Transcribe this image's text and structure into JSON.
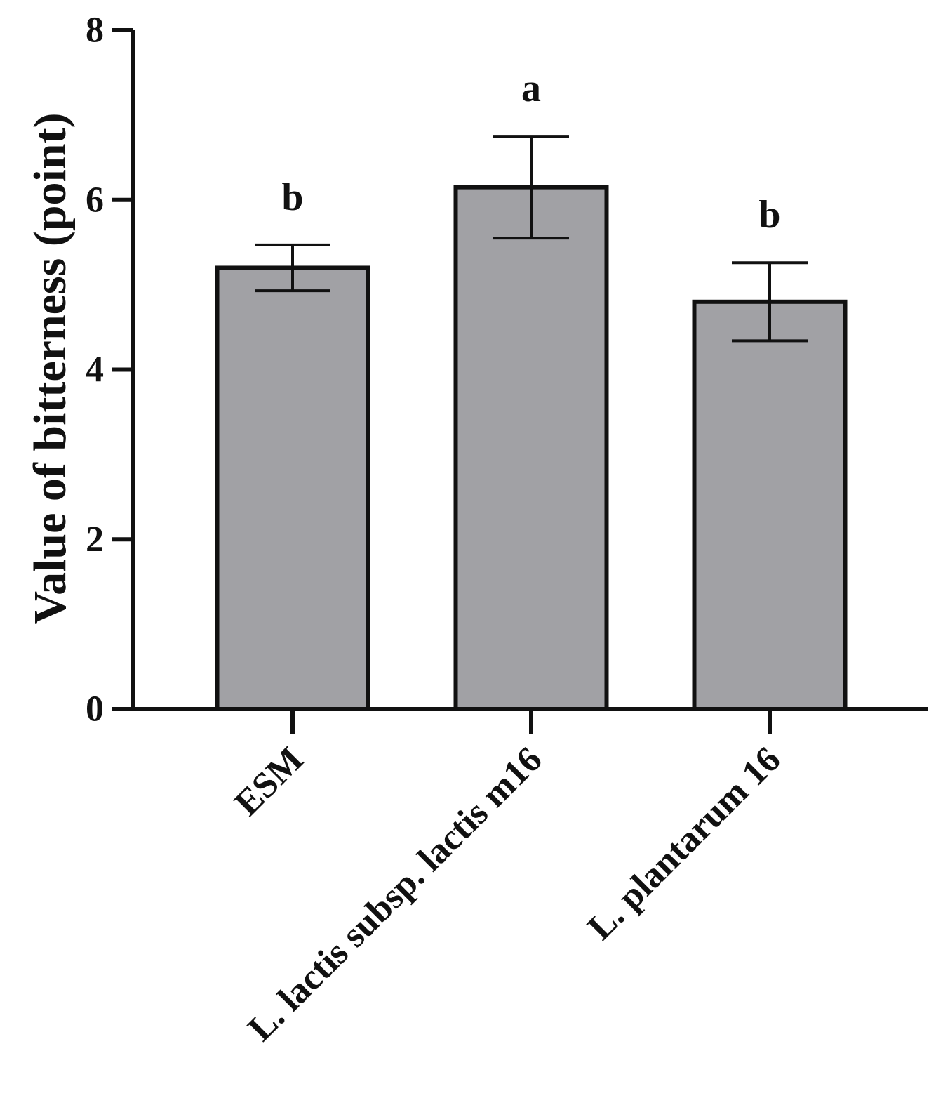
{
  "chart_data": {
    "type": "bar",
    "title": "",
    "xlabel": "",
    "ylabel": "Value of bitterness (point)",
    "ylim": [
      0,
      8
    ],
    "yticks": [
      0,
      2,
      4,
      6,
      8
    ],
    "grid": false,
    "legend": "none",
    "bar_color": "#a1a1a5",
    "edge_color": "#111111",
    "categories": [
      "ESM",
      "L. lactis subsp. lactis m16",
      "L. plantarum 16"
    ],
    "values": [
      5.2,
      6.15,
      4.8
    ],
    "errors": [
      0.27,
      0.6,
      0.46
    ],
    "significance": [
      "b",
      "a",
      "b"
    ]
  }
}
